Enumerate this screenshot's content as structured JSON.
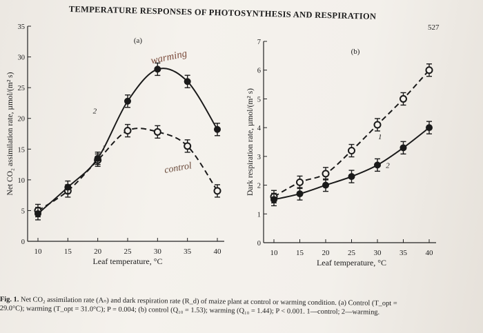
{
  "header": {
    "running_title": "TEMPERATURE RESPONSES OF PHOTOSYNTHESIS AND RESPIRATION",
    "page_number": "527"
  },
  "chart_data": [
    {
      "type": "line",
      "panel_label": "(a)",
      "xlabel": "Leaf temperature, °C",
      "ylabel": "Net CO₂ assimilation rate, µmol/(m² s)",
      "xlim": [
        10,
        40
      ],
      "ylim": [
        0,
        35
      ],
      "x_ticks": [
        "10",
        "15",
        "20",
        "25",
        "30",
        "35",
        "40"
      ],
      "y_ticks": [
        "0",
        "5",
        "10",
        "15",
        "20",
        "25",
        "30",
        "35"
      ],
      "series": [
        {
          "name": "1",
          "style": "dashed",
          "marker": "open",
          "x": [
            10,
            15,
            20,
            25,
            30,
            35,
            40
          ],
          "y": [
            5.0,
            8.2,
            13.2,
            18.0,
            17.8,
            15.5,
            8.2
          ]
        },
        {
          "name": "2",
          "style": "solid",
          "marker": "filled",
          "x": [
            10,
            15,
            20,
            25,
            30,
            35,
            40
          ],
          "y": [
            4.5,
            8.8,
            13.5,
            22.8,
            28.0,
            26.0,
            18.2
          ]
        }
      ],
      "handwritten": {
        "warming": "warming",
        "control": "control"
      }
    },
    {
      "type": "line",
      "panel_label": "(b)",
      "xlabel": "Leaf temperature, °C",
      "ylabel": "Dark respiration rate, µmol/(m² s)",
      "xlim": [
        10,
        40
      ],
      "ylim": [
        0,
        7
      ],
      "x_ticks": [
        "10",
        "15",
        "20",
        "25",
        "30",
        "35",
        "40"
      ],
      "y_ticks": [
        "0",
        "1",
        "2",
        "3",
        "4",
        "5",
        "6",
        "7"
      ],
      "series": [
        {
          "name": "1",
          "style": "dashed",
          "marker": "open",
          "x": [
            10,
            15,
            20,
            25,
            30,
            35,
            40
          ],
          "y": [
            1.6,
            2.1,
            2.4,
            3.2,
            4.1,
            5.0,
            6.0
          ]
        },
        {
          "name": "2",
          "style": "solid",
          "marker": "filled",
          "x": [
            10,
            15,
            20,
            25,
            30,
            35,
            40
          ],
          "y": [
            1.5,
            1.7,
            2.0,
            2.3,
            2.7,
            3.3,
            4.0
          ]
        }
      ]
    }
  ],
  "caption": {
    "lead": "Fig. 1.",
    "text": "Net CO₂ assimilation rate (Aₙ) and dark respiration rate (R_d) of maize plant at control or warming condition. (a) Control (T_opt =",
    "text2": "29.0°C); warming (T_opt = 31.0°C); P = 0.004; (b) control (Q₁₀ = 1.53); warming (Q₁₀ = 1.44); P < 0.001. 1—control; 2—warming."
  }
}
